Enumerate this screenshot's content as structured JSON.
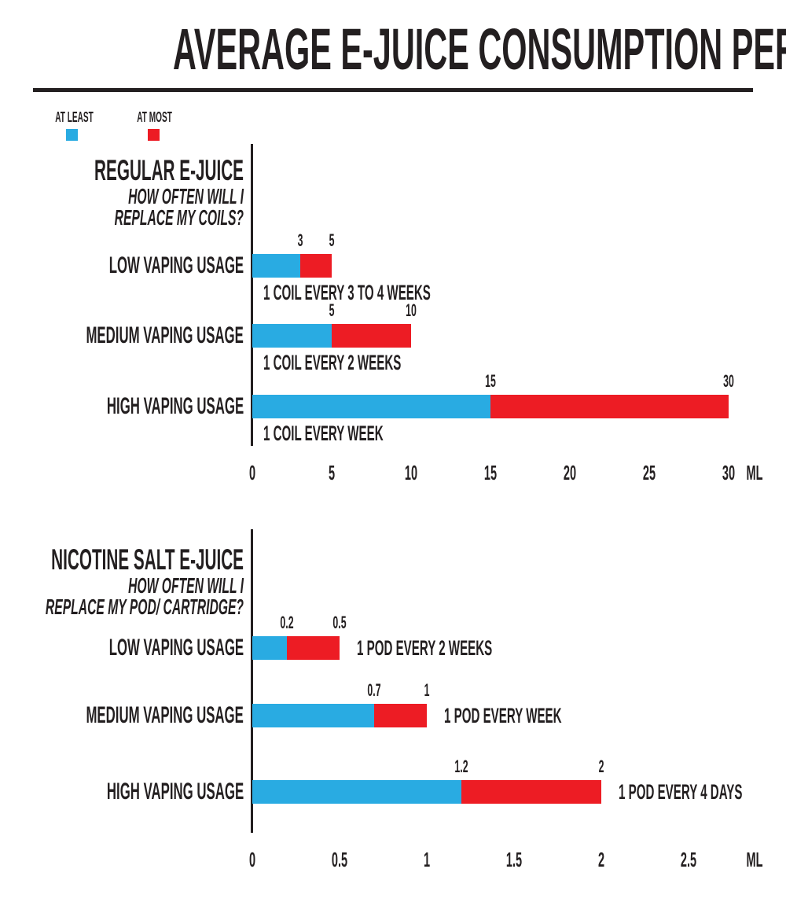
{
  "title": "AVERAGE E-JUICE CONSUMPTION PER DAY",
  "legend": {
    "at_least_label": "AT LEAST",
    "at_most_label": "AT MOST"
  },
  "colors": {
    "at_least_blue": "#29ABE2",
    "at_most_red": "#ED1C24",
    "ink": "#231F20"
  },
  "chart_data": [
    {
      "type": "bar",
      "orientation": "horizontal",
      "stacked": true,
      "title": "REGULAR E-JUICE",
      "subtitle": [
        "HOW OFTEN WILL I",
        "REPLACE MY COILS?"
      ],
      "unit": "ML",
      "xlim": [
        0,
        30
      ],
      "categories": [
        "LOW VAPING USAGE",
        "MEDIUM VAPING USAGE",
        "HIGH VAPING USAGE"
      ],
      "series": [
        {
          "name": "AT LEAST",
          "values": [
            3,
            5,
            15
          ]
        },
        {
          "name": "AT MOST",
          "values": [
            5,
            10,
            30
          ]
        }
      ],
      "value_labels": [
        [
          "3",
          "5"
        ],
        [
          "5",
          "10"
        ],
        [
          "15",
          "30"
        ]
      ],
      "annotations": [
        "1 COIL EVERY 3 TO 4 WEEKS",
        "1 COIL EVERY 2 WEEKS",
        "1 COIL EVERY WEEK"
      ],
      "annotation_position": "below-bar",
      "axis_ticks": [
        {
          "label": "0",
          "value": 0
        },
        {
          "label": "5",
          "value": 5
        },
        {
          "label": "10",
          "value": 10
        },
        {
          "label": "15",
          "value": 15
        },
        {
          "label": "20",
          "value": 20
        },
        {
          "label": "25",
          "value": 25
        },
        {
          "label": "30",
          "value": 30
        }
      ]
    },
    {
      "type": "bar",
      "orientation": "horizontal",
      "stacked": true,
      "title": "NICOTINE SALT E-JUICE",
      "subtitle": [
        "HOW OFTEN WILL I",
        "REPLACE MY POD/ CARTRIDGE?"
      ],
      "unit": "ML",
      "xlim": [
        0,
        2.5
      ],
      "categories": [
        "LOW VAPING USAGE",
        "MEDIUM VAPING USAGE",
        "HIGH VAPING USAGE"
      ],
      "series": [
        {
          "name": "AT LEAST",
          "values": [
            0.2,
            0.7,
            1.2
          ]
        },
        {
          "name": "AT MOST",
          "values": [
            0.5,
            1,
            2
          ]
        }
      ],
      "value_labels": [
        [
          "0.2",
          "0.5"
        ],
        [
          "0.7",
          "1"
        ],
        [
          "1.2",
          "2"
        ]
      ],
      "annotations": [
        "1 POD EVERY 2 WEEKS",
        "1 POD EVERY WEEK",
        "1 POD EVERY 4 DAYS"
      ],
      "annotation_position": "right-of-bar",
      "axis_ticks": [
        {
          "label": "0",
          "value": 0
        },
        {
          "label": "0.5",
          "value": 0.5
        },
        {
          "label": "1",
          "value": 1
        },
        {
          "label": "1.5",
          "value": 1.5
        },
        {
          "label": "2",
          "value": 2
        },
        {
          "label": "2.5",
          "value": 2.5
        }
      ]
    }
  ]
}
